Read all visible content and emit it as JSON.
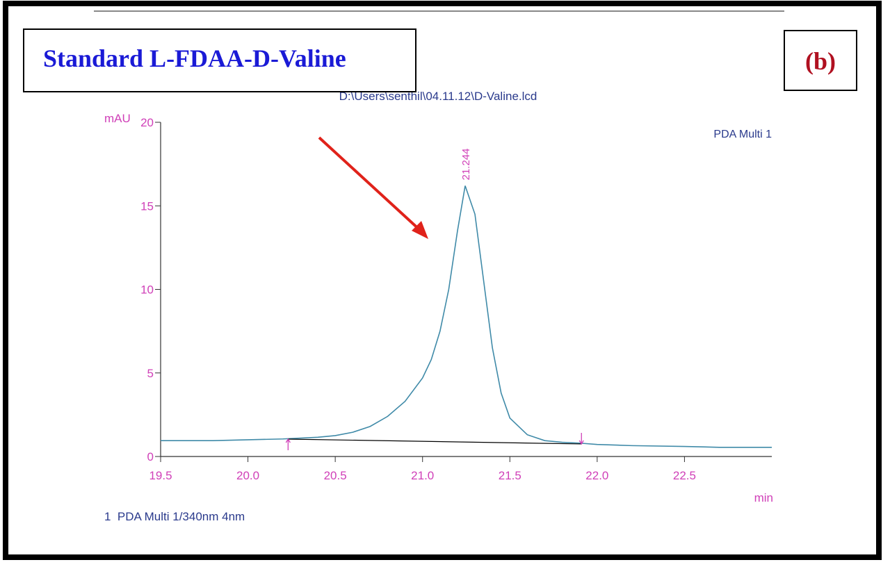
{
  "header": {
    "title": "Standard L-FDAA-D-Valine",
    "panel": "(b)"
  },
  "chart_data": {
    "type": "line",
    "title": "D:\\Users\\senthil\\04.11.12\\D-Valine.lcd",
    "y_label": "mAU",
    "x_label": "min",
    "footer": "1  PDA Multi 1/340nm 4nm",
    "xlim": [
      19.5,
      23.0
    ],
    "ylim": [
      0,
      20
    ],
    "xticks": [
      19.5,
      {
        "value": 20,
        "label": "20.0"
      },
      20.5,
      {
        "value": 21,
        "label": "21.0"
      },
      21.5,
      {
        "value": 22,
        "label": "22.0"
      },
      22.5
    ],
    "yticks": [
      0,
      5,
      10,
      15,
      20
    ],
    "x": [
      19.5,
      19.8,
      20.0,
      20.2,
      20.4,
      20.5,
      20.6,
      20.7,
      20.8,
      20.9,
      21.0,
      21.05,
      21.1,
      21.15,
      21.2,
      21.244,
      21.3,
      21.35,
      21.4,
      21.45,
      21.5,
      21.6,
      21.7,
      21.8,
      21.9,
      22.0,
      22.2,
      22.5,
      22.7,
      23.0
    ],
    "series": [
      {
        "name": "PDA Multi 1",
        "color": "#3f8aa8",
        "values": [
          0.95,
          0.95,
          1.0,
          1.05,
          1.15,
          1.25,
          1.45,
          1.8,
          2.4,
          3.3,
          4.7,
          5.8,
          7.5,
          10.0,
          13.5,
          16.2,
          14.5,
          10.5,
          6.5,
          3.8,
          2.3,
          1.3,
          0.95,
          0.85,
          0.8,
          0.72,
          0.65,
          0.6,
          0.55,
          0.55
        ]
      }
    ],
    "baseline": {
      "color": "#000000",
      "x": [
        20.23,
        21.91
      ],
      "values": [
        1.04,
        0.75
      ]
    },
    "peak_rt": 21.244
  }
}
